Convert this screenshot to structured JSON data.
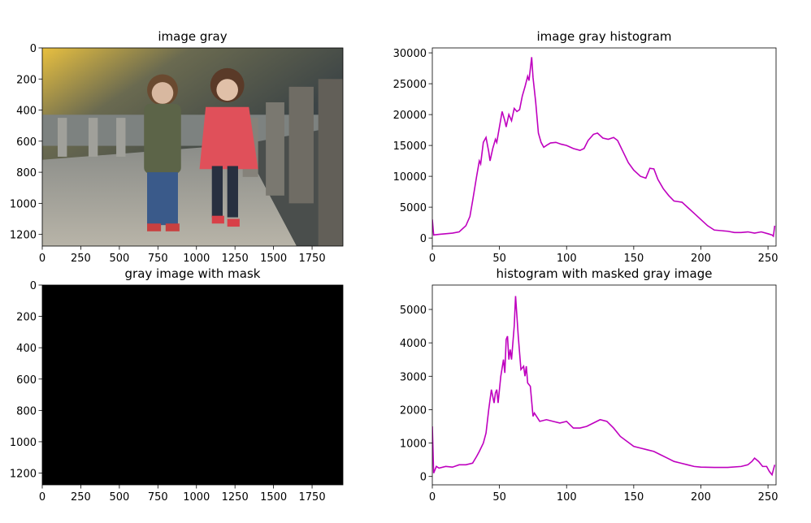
{
  "chart_data": [
    {
      "type": "image",
      "title": "image gray",
      "xlim": [
        0,
        1950
      ],
      "ylim": [
        1275,
        0
      ],
      "xticks": [
        0,
        250,
        500,
        750,
        1000,
        1250,
        1500,
        1750
      ],
      "yticks": [
        0,
        200,
        400,
        600,
        800,
        1000,
        1200
      ]
    },
    {
      "type": "line",
      "title": "image gray histogram",
      "color": "#bf00bf",
      "xlim": [
        0,
        256
      ],
      "ylim": [
        -1300,
        30800
      ],
      "xticks": [
        0,
        50,
        100,
        150,
        200,
        250
      ],
      "yticks": [
        0,
        5000,
        10000,
        15000,
        20000,
        25000,
        30000
      ],
      "x": [
        0,
        1,
        5,
        10,
        15,
        20,
        25,
        28,
        30,
        33,
        35,
        36,
        38,
        40,
        42,
        43,
        45,
        47,
        48,
        50,
        52,
        54,
        55,
        57,
        59,
        61,
        63,
        65,
        67,
        69,
        71,
        72,
        74,
        75,
        77,
        79,
        81,
        83,
        85,
        88,
        92,
        96,
        100,
        105,
        110,
        113,
        116,
        120,
        123,
        127,
        131,
        135,
        138,
        142,
        146,
        150,
        155,
        159,
        162,
        165,
        168,
        172,
        176,
        180,
        183,
        186,
        190,
        195,
        200,
        205,
        210,
        215,
        220,
        225,
        230,
        235,
        240,
        245,
        250,
        253,
        254,
        255
      ],
      "values": [
        3000,
        500,
        600,
        700,
        800,
        1000,
        2000,
        3500,
        6000,
        10000,
        12500,
        12000,
        15500,
        16300,
        14000,
        12500,
        14500,
        16000,
        15500,
        18000,
        20500,
        19000,
        18000,
        20000,
        19000,
        21000,
        20500,
        20800,
        23000,
        24500,
        26200,
        25500,
        29300,
        26000,
        22000,
        17000,
        15500,
        14700,
        15000,
        15400,
        15500,
        15200,
        15000,
        14500,
        14200,
        14500,
        15800,
        16800,
        17000,
        16200,
        16000,
        16300,
        15800,
        14000,
        12200,
        11000,
        10000,
        9700,
        11300,
        11200,
        9500,
        8000,
        6900,
        6000,
        5900,
        5800,
        5000,
        4000,
        3000,
        2000,
        1300,
        1200,
        1100,
        900,
        900,
        1000,
        800,
        1000,
        700,
        500,
        300,
        2000
      ]
    },
    {
      "type": "masked-image",
      "title": "gray image with mask",
      "xlim": [
        0,
        1950
      ],
      "ylim": [
        1275,
        0
      ],
      "xticks": [
        0,
        250,
        500,
        750,
        1000,
        1250,
        1500,
        1750
      ],
      "yticks": [
        0,
        200,
        400,
        600,
        800,
        1000,
        1200
      ]
    },
    {
      "type": "line",
      "title": "histogram with masked gray image",
      "color": "#bf00bf",
      "xlim": [
        0,
        256
      ],
      "ylim": [
        -250,
        5730
      ],
      "xticks": [
        0,
        50,
        100,
        150,
        200,
        250
      ],
      "yticks": [
        0,
        1000,
        2000,
        3000,
        4000,
        5000
      ],
      "x": [
        0,
        1,
        3,
        5,
        10,
        15,
        20,
        25,
        30,
        33,
        35,
        38,
        40,
        42,
        44,
        46,
        47,
        48,
        49,
        51,
        53,
        54,
        55,
        56,
        57,
        58,
        59,
        61,
        62,
        63,
        64,
        66,
        68,
        69,
        70,
        71,
        73,
        75,
        76,
        80,
        85,
        90,
        95,
        100,
        105,
        110,
        115,
        120,
        125,
        130,
        135,
        140,
        145,
        150,
        155,
        160,
        165,
        170,
        175,
        180,
        185,
        190,
        195,
        200,
        210,
        220,
        230,
        235,
        238,
        240,
        243,
        246,
        249,
        251,
        253,
        255
      ],
      "values": [
        1500,
        100,
        300,
        250,
        300,
        280,
        350,
        350,
        400,
        600,
        750,
        1000,
        1300,
        2000,
        2600,
        2200,
        2500,
        2600,
        2200,
        3000,
        3500,
        3100,
        4100,
        4200,
        3500,
        3800,
        3500,
        4500,
        5400,
        4800,
        4200,
        3200,
        3300,
        3000,
        3300,
        2800,
        2700,
        1800,
        1900,
        1650,
        1700,
        1650,
        1600,
        1650,
        1450,
        1450,
        1500,
        1600,
        1700,
        1650,
        1450,
        1200,
        1050,
        900,
        850,
        800,
        750,
        650,
        550,
        450,
        400,
        350,
        300,
        280,
        270,
        270,
        300,
        350,
        450,
        550,
        450,
        300,
        300,
        150,
        50,
        350
      ]
    }
  ]
}
